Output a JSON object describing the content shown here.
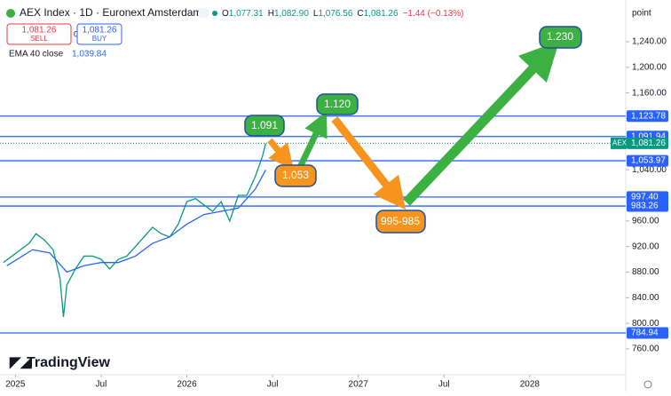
{
  "chart_data": {
    "type": "line",
    "title": "AEX Index · 1D · Euronext Amsterdam",
    "ohlc": [
      {
        "key": "O",
        "text": "1,077.31"
      },
      {
        "key": "H",
        "text": "1,082.90"
      },
      {
        "key": "L",
        "text": "1,076.56"
      },
      {
        "key": "C",
        "text": "1,081.26"
      }
    ],
    "change": "−1.44 (−0.13%)",
    "sell": {
      "price": "1,081.26",
      "label": "SELL"
    },
    "spread": "0.00",
    "buy": {
      "price": "1,081.26",
      "label": "BUY"
    },
    "indicator": {
      "name": "EMA 40 close",
      "value": "1,039.84"
    },
    "axis_unit": "point",
    "xlim": [
      2024.91,
      2028.56
    ],
    "xticks": [
      {
        "value": 2025,
        "label": "2025"
      },
      {
        "value": 2025.5,
        "label": "Jul"
      },
      {
        "value": 2026,
        "label": "2026"
      },
      {
        "value": 2026.5,
        "label": "Jul"
      },
      {
        "value": 2027,
        "label": "2027"
      },
      {
        "value": 2027.5,
        "label": "Jul"
      },
      {
        "value": 2028,
        "label": "2028"
      }
    ],
    "ylim": [
      722.5,
      1305.2
    ],
    "yticks": [
      {
        "value": 760,
        "label": "760.00"
      },
      {
        "value": 800,
        "label": "800.00"
      },
      {
        "value": 840,
        "label": "840.00"
      },
      {
        "value": 880,
        "label": "880.00"
      },
      {
        "value": 920,
        "label": "920.00"
      },
      {
        "value": 960,
        "label": "960.00"
      },
      {
        "value": 1000,
        "label": "1,000.00"
      },
      {
        "value": 1040,
        "label": "1,040.00"
      },
      {
        "value": 1080,
        "label": "1,080.00"
      },
      {
        "value": 1120,
        "label": "1,120.00"
      },
      {
        "value": 1160,
        "label": "1,160.00"
      },
      {
        "value": 1200,
        "label": "1,200.00"
      },
      {
        "value": 1240,
        "label": "1,240.00"
      }
    ],
    "series": [
      {
        "name": "AEX",
        "color": "#089981",
        "x": [
          2024.93,
          2024.98,
          2025.03,
          2025.08,
          2025.12,
          2025.17,
          2025.22,
          2025.26,
          2025.28,
          2025.3,
          2025.35,
          2025.4,
          2025.45,
          2025.5,
          2025.55,
          2025.6,
          2025.65,
          2025.7,
          2025.75,
          2025.8,
          2025.85,
          2025.9,
          2025.95,
          2026.0,
          2026.05,
          2026.1,
          2026.15,
          2026.2,
          2026.25,
          2026.3,
          2026.35,
          2026.4,
          2026.44,
          2026.46
        ],
        "values": [
          895,
          905,
          915,
          925,
          940,
          930,
          915,
          870,
          810,
          860,
          885,
          905,
          905,
          900,
          885,
          900,
          905,
          920,
          935,
          950,
          940,
          935,
          955,
          990,
          995,
          985,
          975,
          990,
          960,
          1000,
          1000,
          1030,
          1060,
          1081.26
        ]
      },
      {
        "name": "EMA 40 close",
        "color": "#2962ff",
        "x": [
          2024.95,
          2025.1,
          2025.2,
          2025.3,
          2025.4,
          2025.5,
          2025.6,
          2025.7,
          2025.8,
          2025.9,
          2026.0,
          2026.1,
          2026.2,
          2026.3,
          2026.4,
          2026.46
        ],
        "values": [
          890,
          915,
          910,
          880,
          890,
          895,
          895,
          905,
          925,
          935,
          955,
          970,
          975,
          980,
          1010,
          1039.84
        ]
      }
    ],
    "levels": [
      {
        "value": 1123.78,
        "label": "1,123.78"
      },
      {
        "value": 1091.94,
        "label": "1,091.94"
      },
      {
        "value": 1053.97,
        "label": "1,053.97"
      },
      {
        "value": 997.4,
        "label": "997.40"
      },
      {
        "value": 983.26,
        "label": "983.26"
      },
      {
        "value": 784.94,
        "label": "784.94"
      }
    ],
    "last": {
      "symbol": "AEX",
      "value": 1081.26,
      "label": "1,081.26"
    },
    "annotations": [
      "1.091",
      "1.053",
      "1.120",
      "995-985",
      "1.230"
    ],
    "brand": "TradingView"
  }
}
